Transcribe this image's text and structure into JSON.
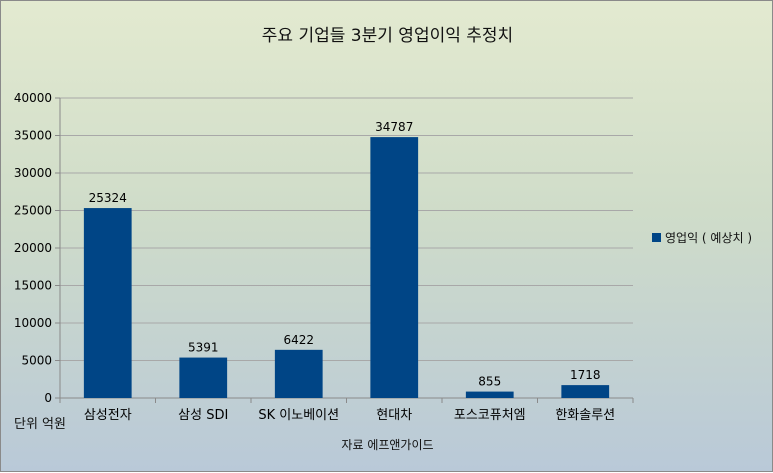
{
  "chart_data": {
    "type": "bar",
    "title": "주요 기업들  3분기 영업이익 추정치",
    "categories": [
      "삼성전자",
      "삼성 SDI",
      "SK 이노베이션",
      "현대차",
      "포스코퓨처엠",
      "한화솔루션"
    ],
    "series": [
      {
        "name": "영업익 ( 예상치 )",
        "values": [
          25324,
          5391,
          6422,
          34787,
          855,
          1718
        ],
        "color": "#004586"
      }
    ],
    "data_labels": [
      "25324",
      "5391",
      "6422",
      "34787",
      "855",
      "1718"
    ],
    "ylim": [
      0,
      40000
    ],
    "yticks": [
      0,
      5000,
      10000,
      15000,
      20000,
      25000,
      30000,
      35000,
      40000
    ],
    "ytick_labels": [
      "0",
      "5000",
      "10000",
      "15000",
      "20000",
      "25000",
      "30000",
      "35000",
      "40000"
    ],
    "unit_note": "단위 억원",
    "xlabel": "자료 에프앤가이드",
    "grid": true,
    "legend_position": "right"
  }
}
